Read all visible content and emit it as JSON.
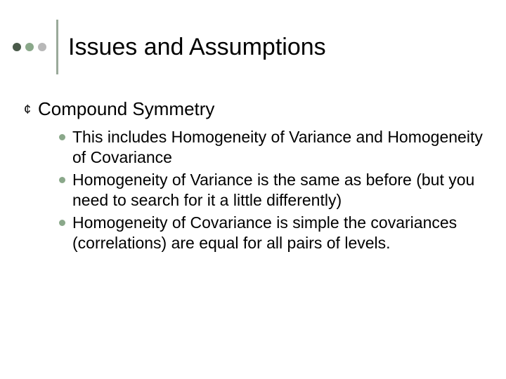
{
  "colors": {
    "dot1": "#4a5a4a",
    "dot2": "#8aa88a",
    "dot3": "#b8b8b8",
    "vline": "#9aaa9a",
    "l1_bullet": "#000000",
    "l2_bullet": "#8aa88a",
    "text": "#000000",
    "background": "#ffffff"
  },
  "title": "Issues and Assumptions",
  "l1": {
    "bullet": "¢",
    "text": "Compound Symmetry"
  },
  "l2": [
    "This includes Homogeneity of Variance and Homogeneity of Covariance",
    "Homogeneity of Variance is the same as before (but you need to search for it a little differently)",
    "Homogeneity of Covariance is simple the covariances (correlations) are equal for all pairs of levels."
  ],
  "fontsizes": {
    "title": 34,
    "l1": 26,
    "l2": 23
  }
}
